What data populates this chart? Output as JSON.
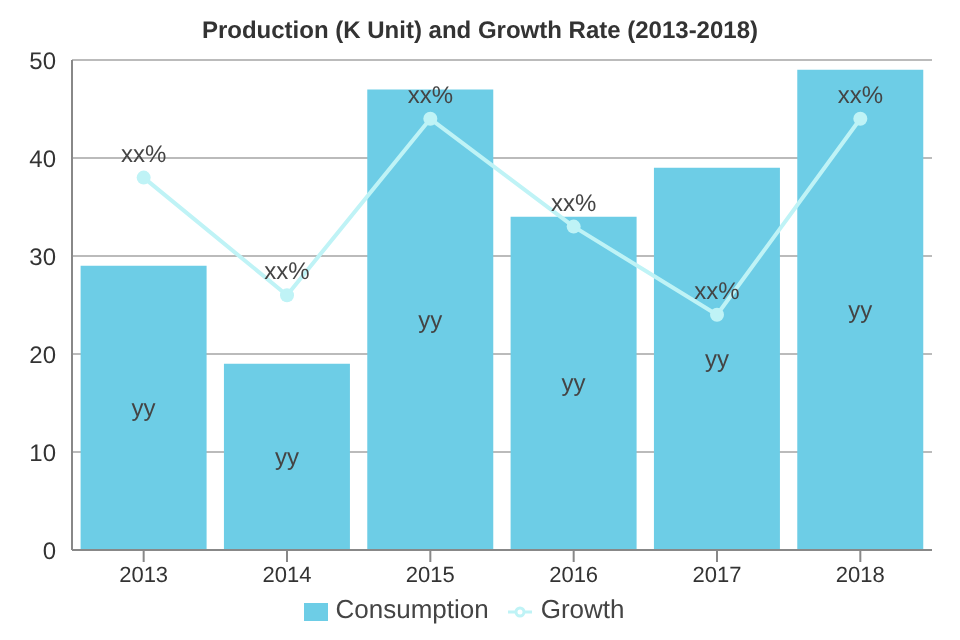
{
  "chart_data": {
    "type": "bar",
    "title": "Production (K Unit) and Growth Rate (2013-2018)",
    "categories": [
      "2013",
      "2014",
      "2015",
      "2016",
      "2017",
      "2018"
    ],
    "series": [
      {
        "name": "Consumption",
        "color": "#6dcde6",
        "values": [
          29,
          19,
          47,
          34,
          39,
          49
        ],
        "value_labels": [
          "yy",
          "yy",
          "yy",
          "yy",
          "yy",
          "yy"
        ]
      },
      {
        "name": "Growth",
        "type": "line",
        "color": "#bff3f6",
        "values": [
          38,
          26,
          44,
          33,
          24,
          44
        ],
        "value_labels": [
          "xx%",
          "xx%",
          "xx%",
          "xx%",
          "xx%",
          "xx%"
        ]
      }
    ],
    "ylim": [
      0,
      50
    ],
    "yticks": [
      0,
      10,
      20,
      30,
      40,
      50
    ],
    "grid": "y",
    "legend": "bottom",
    "marker": "circle"
  }
}
